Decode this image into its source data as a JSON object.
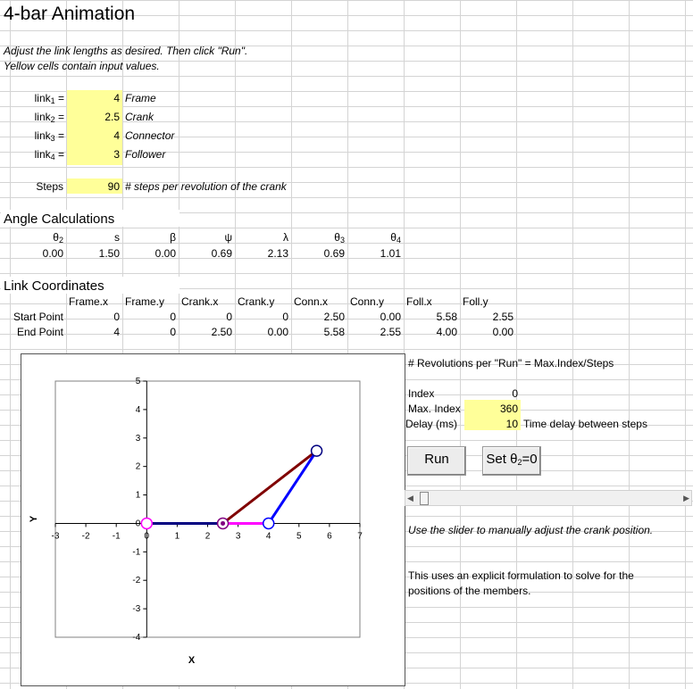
{
  "title": "4-bar Animation",
  "instructions": [
    "Adjust the link lengths as desired. Then click \"Run\".",
    "Yellow cells contain input values."
  ],
  "links": [
    {
      "base": "link",
      "sub": "1",
      "value": "4",
      "desc": "Frame"
    },
    {
      "base": "link",
      "sub": "2",
      "value": "2.5",
      "desc": "Crank"
    },
    {
      "base": "link",
      "sub": "3",
      "value": "4",
      "desc": "Connector"
    },
    {
      "base": "link",
      "sub": "4",
      "value": "3",
      "desc": "Follower"
    }
  ],
  "steps": {
    "label": "Steps",
    "value": "90",
    "desc": "# steps per revolution of the crank"
  },
  "angles": {
    "heading": "Angle Calculations",
    "headers": [
      "θ2",
      "s",
      "β",
      "ψ",
      "λ",
      "θ3",
      "θ4"
    ],
    "values": [
      "0.00",
      "1.50",
      "0.00",
      "0.69",
      "2.13",
      "0.69",
      "1.01"
    ]
  },
  "coords": {
    "heading": "Link Coordinates",
    "headers": [
      "Frame.x",
      "Frame.y",
      "Crank.x",
      "Crank.y",
      "Conn.x",
      "Conn.y",
      "Foll.x",
      "Foll.y"
    ],
    "rows": [
      {
        "label": "Start Point",
        "values": [
          "0",
          "0",
          "0",
          "0",
          "2.50",
          "0.00",
          "5.58",
          "2.55"
        ]
      },
      {
        "label": "End Point",
        "values": [
          "4",
          "0",
          "2.50",
          "0.00",
          "5.58",
          "2.55",
          "4.00",
          "0.00"
        ]
      }
    ]
  },
  "panel": {
    "revolutions_note": "# Revolutions per \"Run\" = Max.Index/Steps",
    "index_label": "Index",
    "index_value": "0",
    "max_index_label": "Max. Index",
    "max_index_value": "360",
    "delay_label": "Delay (ms)",
    "delay_value": "10",
    "delay_desc": "Time delay between steps",
    "run_button": "Run",
    "set_button": "Set θ2=0",
    "slider_note": "Use the slider to manually adjust the crank position.",
    "method_note_1": "This uses an explicit formulation to solve for the",
    "method_note_2": "positions of the members.",
    "slider_value": 0
  },
  "chart_data": {
    "type": "scatter",
    "xlabel": "X",
    "ylabel": "Y",
    "xlim": [
      -3,
      7
    ],
    "ylim": [
      -4,
      5
    ],
    "xticks": [
      -3,
      -2,
      -1,
      0,
      1,
      2,
      3,
      4,
      5,
      6,
      7
    ],
    "yticks": [
      -4,
      -3,
      -2,
      -1,
      0,
      1,
      2,
      3,
      4,
      5
    ],
    "series": [
      {
        "color": "#ff00ff",
        "points": [
          [
            0,
            0
          ],
          [
            4,
            0
          ]
        ]
      },
      {
        "color": "#000080",
        "points": [
          [
            0,
            0
          ],
          [
            2.5,
            0
          ]
        ]
      },
      {
        "color": "#800000",
        "points": [
          [
            2.5,
            0
          ],
          [
            5.58,
            2.55
          ]
        ]
      },
      {
        "color": "#0000ff",
        "points": [
          [
            5.58,
            2.55
          ],
          [
            4,
            0
          ]
        ]
      }
    ],
    "joints": [
      {
        "x": 0,
        "y": 0,
        "color": "#ff00ff"
      },
      {
        "x": 2.5,
        "y": 0,
        "color": "#800080"
      },
      {
        "x": 4,
        "y": 0,
        "color": "#0000ff"
      },
      {
        "x": 5.58,
        "y": 2.55,
        "color": "#000080"
      }
    ]
  }
}
